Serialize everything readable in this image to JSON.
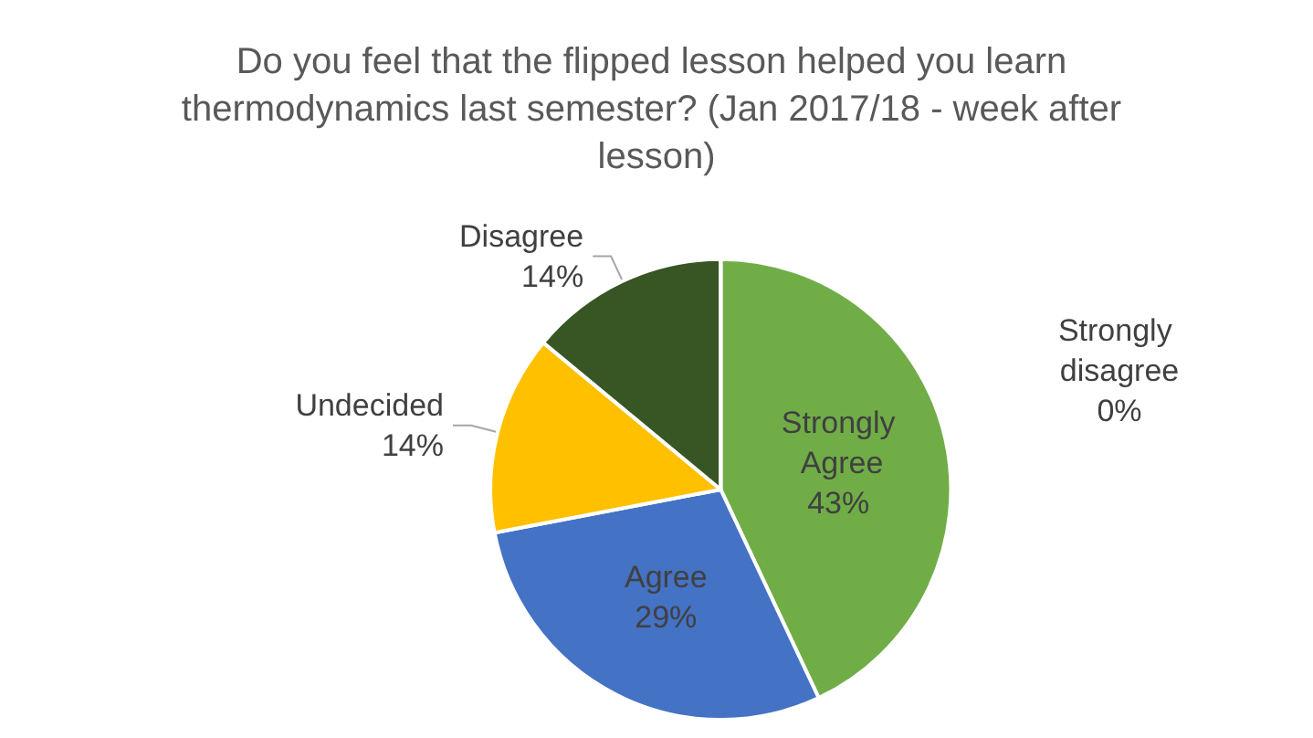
{
  "chart_data": {
    "type": "pie",
    "title": "Do you feel that the flipped lesson helped you learn thermodynamics last semester? (Jan 2017/18 - week after lesson)",
    "categories": [
      "Strongly Agree",
      "Agree",
      "Undecided",
      "Disagree",
      "Strongly disagree"
    ],
    "values": [
      43,
      29,
      14,
      14,
      0
    ],
    "colors": [
      "#70ad47",
      "#4472c4",
      "#ffc000",
      "#375623",
      "#a5a5a5"
    ],
    "value_labels": [
      "43%",
      "29%",
      "14%",
      "14%",
      "0%"
    ],
    "legend": false
  }
}
